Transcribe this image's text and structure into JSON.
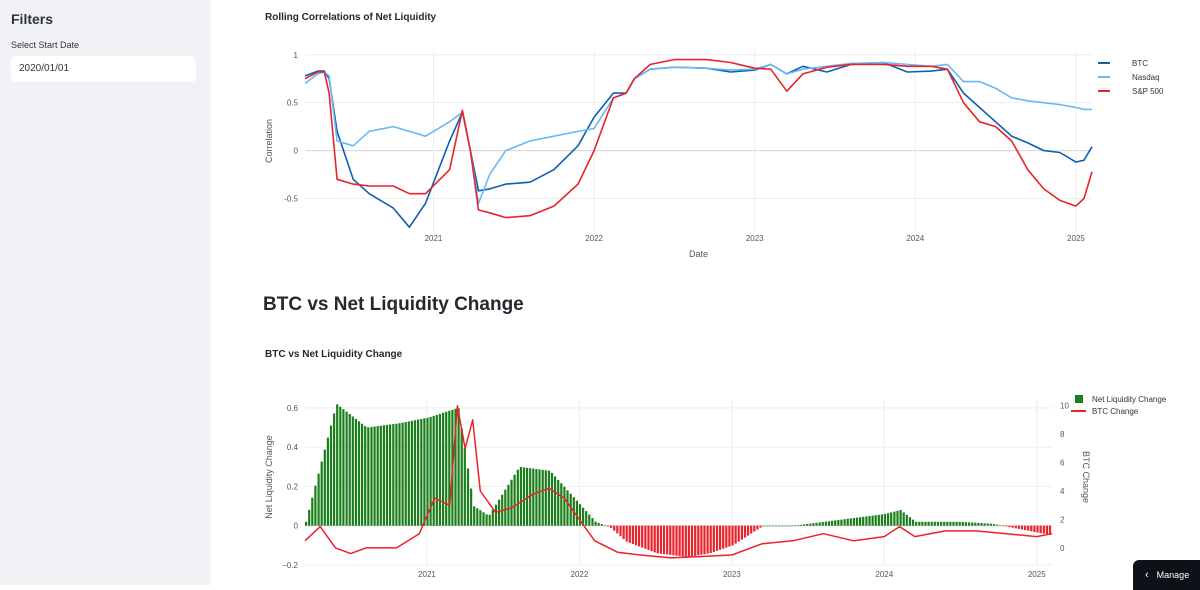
{
  "sidebar": {
    "title": "Filters",
    "start_date_label": "Select Start Date",
    "start_date_value": "2020/01/01"
  },
  "main": {
    "section_heading": "BTC vs Net Liquidity Change",
    "manage_label": "Manage"
  },
  "colors": {
    "btc": "#0b5fb5",
    "nasdaq": "#6cb8f0",
    "sp500": "#e8232a",
    "liq_pos": "#1a7f1a",
    "liq_neg": "#e8232a",
    "btc_change": "#e8232a"
  },
  "chart_data": [
    {
      "type": "line",
      "title": "Rolling Correlations of Net Liquidity",
      "xlabel": "Date",
      "ylabel": "Correlation",
      "x_tick_labels": [
        "2021",
        "2022",
        "2023",
        "2024",
        "2025"
      ],
      "y_ticks": [
        1,
        0.5,
        0,
        -0.5
      ],
      "y_tick_labels": [
        "1",
        "0.5",
        "0",
        "-0.5"
      ],
      "xlim": [
        2020.2,
        2025.1
      ],
      "ylim": [
        -0.85,
        1.05
      ],
      "legend_position": "top-right",
      "series": [
        {
          "name": "BTC",
          "color_key": "btc",
          "x": [
            2020.2,
            2020.28,
            2020.32,
            2020.35,
            2020.4,
            2020.5,
            2020.6,
            2020.75,
            2020.85,
            2020.95,
            2021.1,
            2021.18,
            2021.23,
            2021.28,
            2021.35,
            2021.45,
            2021.6,
            2021.75,
            2021.9,
            2022.0,
            2022.12,
            2022.2,
            2022.25,
            2022.35,
            2022.5,
            2022.7,
            2022.85,
            2023.0,
            2023.1,
            2023.2,
            2023.3,
            2023.45,
            2023.6,
            2023.8,
            2023.95,
            2024.1,
            2024.2,
            2024.3,
            2024.4,
            2024.5,
            2024.6,
            2024.7,
            2024.8,
            2024.9,
            2025.0,
            2025.05,
            2025.1
          ],
          "values": [
            0.78,
            0.83,
            0.83,
            0.75,
            0.2,
            -0.3,
            -0.45,
            -0.6,
            -0.8,
            -0.55,
            0.1,
            0.4,
            0.0,
            -0.42,
            -0.4,
            -0.35,
            -0.33,
            -0.2,
            0.05,
            0.35,
            0.6,
            0.6,
            0.75,
            0.85,
            0.87,
            0.86,
            0.82,
            0.84,
            0.9,
            0.8,
            0.88,
            0.82,
            0.9,
            0.92,
            0.82,
            0.83,
            0.85,
            0.6,
            0.45,
            0.3,
            0.15,
            0.08,
            0.0,
            -0.02,
            -0.12,
            -0.1,
            0.04
          ]
        },
        {
          "name": "Nasdaq",
          "color_key": "nasdaq",
          "x": [
            2020.2,
            2020.28,
            2020.32,
            2020.35,
            2020.4,
            2020.5,
            2020.6,
            2020.75,
            2020.85,
            2020.95,
            2021.1,
            2021.18,
            2021.23,
            2021.28,
            2021.35,
            2021.45,
            2021.6,
            2021.75,
            2021.9,
            2022.0,
            2022.12,
            2022.2,
            2022.25,
            2022.35,
            2022.5,
            2022.7,
            2022.85,
            2023.0,
            2023.1,
            2023.2,
            2023.3,
            2023.45,
            2023.6,
            2023.8,
            2023.95,
            2024.1,
            2024.2,
            2024.3,
            2024.4,
            2024.5,
            2024.6,
            2024.7,
            2024.8,
            2024.9,
            2025.0,
            2025.05,
            2025.1
          ],
          "values": [
            0.7,
            0.8,
            0.82,
            0.78,
            0.1,
            0.05,
            0.2,
            0.25,
            0.2,
            0.15,
            0.3,
            0.4,
            0.0,
            -0.55,
            -0.25,
            0.0,
            0.1,
            0.15,
            0.2,
            0.23,
            0.55,
            0.6,
            0.75,
            0.85,
            0.87,
            0.86,
            0.84,
            0.85,
            0.9,
            0.8,
            0.85,
            0.88,
            0.91,
            0.92,
            0.9,
            0.88,
            0.9,
            0.72,
            0.72,
            0.65,
            0.55,
            0.52,
            0.5,
            0.48,
            0.45,
            0.43,
            0.43
          ]
        },
        {
          "name": "S&P 500",
          "color_key": "sp500",
          "x": [
            2020.2,
            2020.28,
            2020.32,
            2020.35,
            2020.4,
            2020.5,
            2020.6,
            2020.75,
            2020.85,
            2020.95,
            2021.1,
            2021.18,
            2021.23,
            2021.28,
            2021.35,
            2021.45,
            2021.6,
            2021.75,
            2021.9,
            2022.0,
            2022.12,
            2022.2,
            2022.25,
            2022.35,
            2022.5,
            2022.7,
            2022.85,
            2023.0,
            2023.1,
            2023.2,
            2023.3,
            2023.45,
            2023.6,
            2023.8,
            2023.95,
            2024.1,
            2024.2,
            2024.3,
            2024.4,
            2024.5,
            2024.6,
            2024.7,
            2024.8,
            2024.9,
            2025.0,
            2025.05,
            2025.1
          ],
          "values": [
            0.75,
            0.82,
            0.82,
            0.6,
            -0.3,
            -0.35,
            -0.37,
            -0.37,
            -0.45,
            -0.45,
            -0.2,
            0.42,
            0.0,
            -0.62,
            -0.65,
            -0.7,
            -0.68,
            -0.58,
            -0.35,
            0.0,
            0.55,
            0.6,
            0.75,
            0.9,
            0.95,
            0.95,
            0.92,
            0.86,
            0.85,
            0.62,
            0.8,
            0.87,
            0.9,
            0.9,
            0.88,
            0.88,
            0.85,
            0.5,
            0.3,
            0.25,
            0.1,
            -0.2,
            -0.4,
            -0.52,
            -0.58,
            -0.5,
            -0.22
          ]
        }
      ]
    },
    {
      "type": "bar+line",
      "title": "BTC vs Net Liquidity Change",
      "xlabel": "",
      "ylabel_left": "Net Liquidity Change",
      "ylabel_right": "BTC Change",
      "x_tick_labels": [
        "2021",
        "2022",
        "2023",
        "2024",
        "2025"
      ],
      "y_left_ticks": [
        0.6,
        0.4,
        0.2,
        0,
        -0.2
      ],
      "y_left_tick_labels": [
        "0.6",
        "0.4",
        "0.2",
        "0",
        "−0.2"
      ],
      "y_right_ticks": [
        10,
        8,
        6,
        4,
        2,
        0
      ],
      "y_right_tick_labels": [
        "10",
        "8",
        "6",
        "4",
        "2",
        "0"
      ],
      "xlim": [
        2020.2,
        2025.1
      ],
      "ylim_left": [
        -0.2,
        0.64
      ],
      "ylim_right": [
        -1.2,
        10.4
      ],
      "legend_position": "top-right",
      "bars": {
        "name": "Net Liquidity Change",
        "x": [
          2020.2,
          2020.4,
          2020.6,
          2020.8,
          2021.0,
          2021.2,
          2021.3,
          2021.4,
          2021.6,
          2021.8,
          2021.95,
          2022.1,
          2022.2,
          2022.3,
          2022.5,
          2022.7,
          2022.85,
          2023.0,
          2023.2,
          2023.4,
          2023.6,
          2023.8,
          2024.0,
          2024.1,
          2024.2,
          2024.3,
          2024.5,
          2024.7,
          2024.9,
          2025.1
        ],
        "values": [
          0.02,
          0.62,
          0.5,
          0.52,
          0.55,
          0.6,
          0.1,
          0.05,
          0.3,
          0.28,
          0.15,
          0.02,
          -0.01,
          -0.08,
          -0.14,
          -0.16,
          -0.14,
          -0.1,
          0.0,
          0.0,
          0.02,
          0.04,
          0.06,
          0.08,
          0.02,
          0.02,
          0.02,
          0.01,
          -0.02,
          -0.05
        ]
      },
      "line": {
        "name": "BTC Change",
        "x": [
          2020.2,
          2020.3,
          2020.4,
          2020.5,
          2020.6,
          2020.8,
          2020.95,
          2021.05,
          2021.15,
          2021.2,
          2021.25,
          2021.3,
          2021.35,
          2021.45,
          2021.55,
          2021.7,
          2021.8,
          2021.9,
          2022.0,
          2022.1,
          2022.25,
          2022.4,
          2022.6,
          2022.8,
          2023.0,
          2023.2,
          2023.4,
          2023.6,
          2023.8,
          2024.0,
          2024.1,
          2024.2,
          2024.4,
          2024.6,
          2024.8,
          2025.0,
          2025.1
        ],
        "values": [
          0.5,
          1.5,
          0.0,
          -0.4,
          0.0,
          0.0,
          1.0,
          3.5,
          3.0,
          10.0,
          7.0,
          9.0,
          4.0,
          2.5,
          2.8,
          3.8,
          4.2,
          3.5,
          2.0,
          0.5,
          -0.3,
          -0.5,
          -0.7,
          -0.6,
          -0.5,
          0.3,
          0.5,
          1.0,
          0.5,
          0.8,
          1.5,
          0.8,
          1.2,
          1.2,
          1.0,
          0.8,
          1.0
        ]
      }
    }
  ]
}
